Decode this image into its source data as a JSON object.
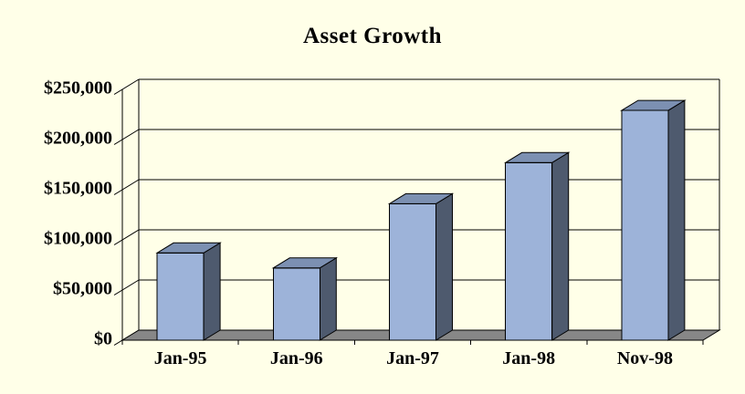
{
  "page": {
    "background": "#FFFFE8"
  },
  "chart_data": {
    "type": "bar",
    "style": "3d-column",
    "title": "Asset Growth",
    "categories": [
      "Jan-95",
      "Jan-96",
      "Jan-97",
      "Jan-98",
      "Nov-98"
    ],
    "values": [
      87000,
      72000,
      136000,
      177000,
      229000
    ],
    "ylim": [
      0,
      250000
    ],
    "ytick_interval": 50000,
    "ytick_labels": [
      "$0",
      "$50,000",
      "$100,000",
      "$150,000",
      "$200,000",
      "$250,000"
    ],
    "grid": true,
    "legend_position": "none",
    "colors": {
      "background": "#FFFFE8",
      "bar_front": "#9DB3D9",
      "bar_top": "#7C90B2",
      "bar_side": "#4E5A6E",
      "floor": "#878787",
      "line": "#000000",
      "text": "#000000"
    }
  }
}
